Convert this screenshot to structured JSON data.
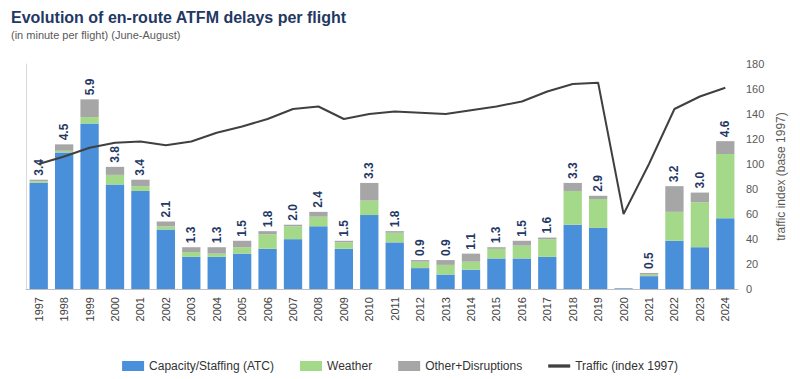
{
  "chart_data": {
    "type": "bar",
    "title": "Evolution of en-route ATFM delays per flight",
    "subtitle": "(in minute per flight) (June-August)",
    "y2label": "traffic index (base 1997)",
    "categories": [
      "1997",
      "1998",
      "1999",
      "2000",
      "2001",
      "2002",
      "2003",
      "2004",
      "2005",
      "2006",
      "2007",
      "2008",
      "2009",
      "2010",
      "2011",
      "2012",
      "2013",
      "2014",
      "2015",
      "2016",
      "2017",
      "2018",
      "2019",
      "2020",
      "2021",
      "2022",
      "2023",
      "2024"
    ],
    "stacked": true,
    "grid": false,
    "legend": "bottom",
    "ylim": [
      0,
      7
    ],
    "y2lim": [
      0,
      180
    ],
    "y2ticks": [
      0,
      20,
      40,
      60,
      80,
      100,
      120,
      140,
      160,
      180
    ],
    "totals": [
      3.4,
      4.5,
      5.9,
      3.8,
      3.4,
      2.1,
      1.3,
      1.3,
      1.5,
      1.8,
      2.0,
      2.4,
      1.5,
      3.3,
      1.8,
      0.9,
      0.9,
      1.1,
      1.3,
      1.5,
      1.6,
      3.3,
      2.9,
      null,
      0.5,
      3.2,
      3.0,
      4.6
    ],
    "series": [
      {
        "name": "Capacity/Staffing (ATC)",
        "type": "bar",
        "color": "#4a8fd9",
        "values": [
          3.3,
          4.25,
          5.15,
          3.25,
          3.05,
          1.85,
          1.0,
          1.0,
          1.1,
          1.25,
          1.55,
          1.95,
          1.25,
          2.3,
          1.45,
          0.65,
          0.45,
          0.6,
          0.95,
          0.95,
          1.0,
          2.0,
          1.9,
          0.02,
          0.4,
          1.5,
          1.3,
          2.2
        ]
      },
      {
        "name": "Weather",
        "type": "bar",
        "color": "#a5d98a",
        "values": [
          0.05,
          0.05,
          0.2,
          0.3,
          0.15,
          0.1,
          0.15,
          0.1,
          0.2,
          0.45,
          0.4,
          0.3,
          0.2,
          0.45,
          0.3,
          0.2,
          0.3,
          0.25,
          0.3,
          0.4,
          0.55,
          1.05,
          0.9,
          0,
          0.05,
          0.9,
          1.4,
          2.0
        ]
      },
      {
        "name": "Other+Disruptions",
        "type": "bar",
        "color": "#a6a6a6",
        "values": [
          0.05,
          0.2,
          0.55,
          0.25,
          0.2,
          0.15,
          0.15,
          0.2,
          0.2,
          0.1,
          0.05,
          0.15,
          0.05,
          0.55,
          0.05,
          0.05,
          0.15,
          0.25,
          0.05,
          0.15,
          0.05,
          0.25,
          0.1,
          0,
          0.05,
          0.8,
          0.3,
          0.4
        ]
      },
      {
        "name": "Traffic (index 1997)",
        "type": "line",
        "axis": "y2",
        "color": "#404040",
        "values": [
          100,
          106,
          113,
          117,
          118,
          115,
          118,
          125,
          130,
          136,
          144,
          146,
          136,
          140,
          142,
          141,
          140,
          143,
          146,
          150,
          158,
          164,
          165,
          60,
          100,
          144,
          154,
          161
        ]
      }
    ]
  }
}
